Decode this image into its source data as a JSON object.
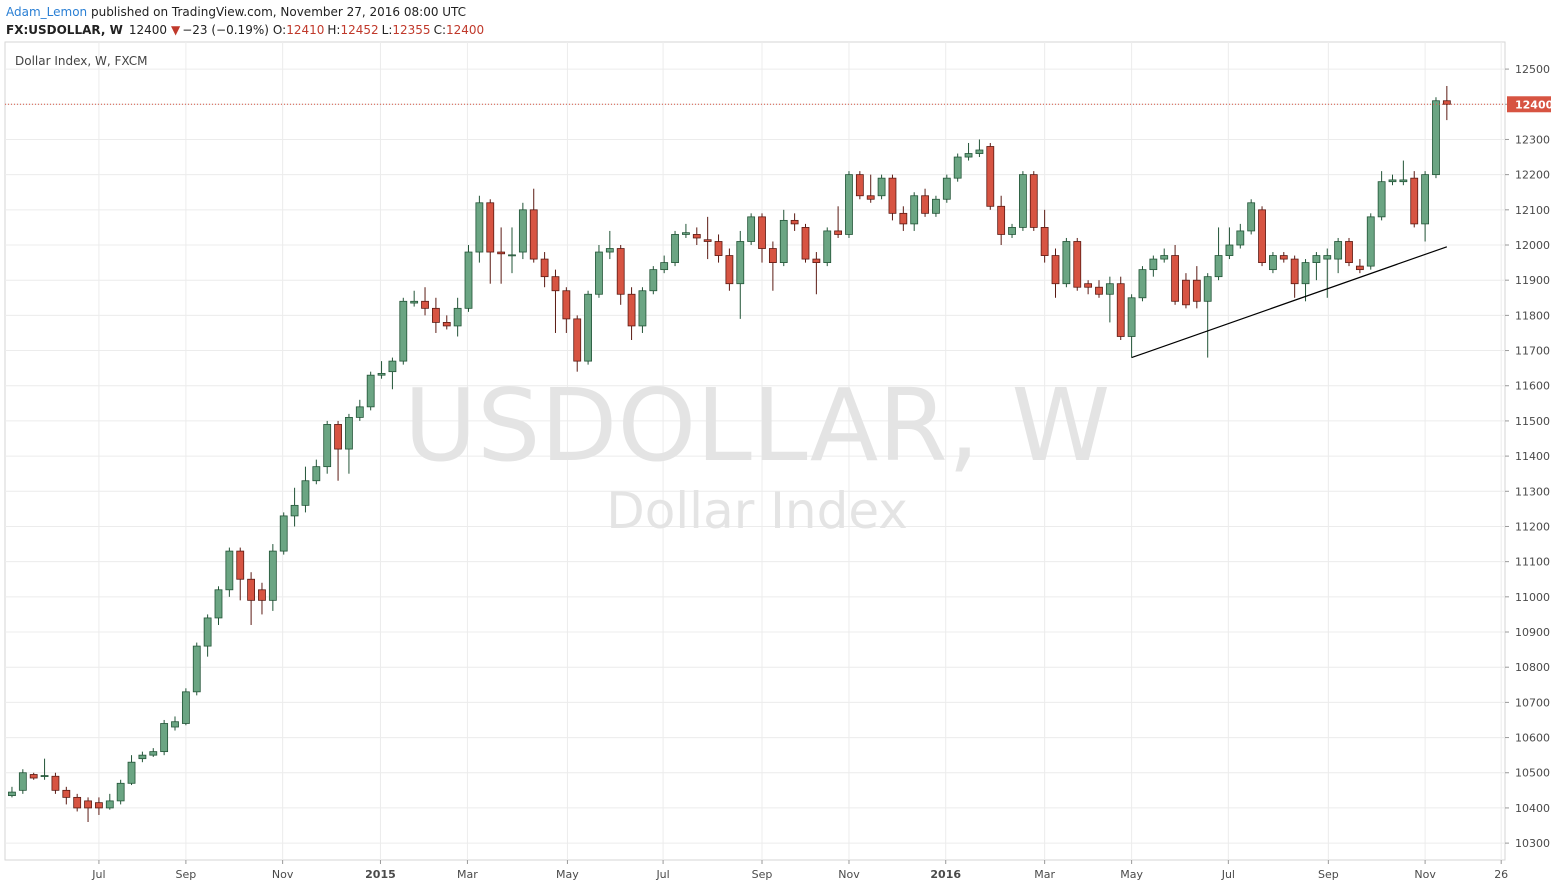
{
  "header": {
    "author": "Adam_Lemon",
    "published": " published on TradingView.com, November 27, 2016 08:00 UTC",
    "symbol": "FX:USDOLLAR, W",
    "price": "12400",
    "change_arrow": "▼",
    "change": "−23 (−0.19%)",
    "ohlc": [
      {
        "key": "O:",
        "value": "12410"
      },
      {
        "key": "H:",
        "value": "12452"
      },
      {
        "key": "L:",
        "value": "12355"
      },
      {
        "key": "C:",
        "value": "12400"
      }
    ]
  },
  "chart_data": {
    "type": "candlestick",
    "title": "Dollar Index, W, FXCM",
    "watermark": "USDOLLAR, W",
    "watermark_subtitle": "Dollar Index",
    "up_color": "#6ba583",
    "up_border": "#225437",
    "down_color": "#d75442",
    "down_border": "#5b1a13",
    "ylim": [
      10252,
      12577
    ],
    "yticks": [
      10300,
      10400,
      10500,
      10600,
      10700,
      10800,
      10900,
      11000,
      11100,
      11200,
      11300,
      11400,
      11500,
      11600,
      11700,
      11800,
      11900,
      12000,
      12100,
      12200,
      12300,
      12400,
      12500
    ],
    "xlim": [
      -0.64,
      137.35
    ],
    "xticks": [
      {
        "value": 8.0,
        "label": "Jul"
      },
      {
        "value": 16.0,
        "label": "Sep"
      },
      {
        "value": 24.9,
        "label": "Nov"
      },
      {
        "value": 33.9,
        "label": "2015"
      },
      {
        "value": 41.9,
        "label": "Mar"
      },
      {
        "value": 51.1,
        "label": "May"
      },
      {
        "value": 59.9,
        "label": "Jul"
      },
      {
        "value": 69.0,
        "label": "Sep"
      },
      {
        "value": 77.0,
        "label": "Nov"
      },
      {
        "value": 85.9,
        "label": "2016"
      },
      {
        "value": 95.0,
        "label": "Mar"
      },
      {
        "value": 103.0,
        "label": "May"
      },
      {
        "value": 111.9,
        "label": "Jul"
      },
      {
        "value": 121.1,
        "label": "Sep"
      },
      {
        "value": 130.0,
        "label": "Nov"
      },
      {
        "value": 137.0,
        "label": "26"
      }
    ],
    "grid": true,
    "last_price": 12400,
    "last_price_color": "#d75442",
    "trendline": {
      "x": [
        103,
        132
      ],
      "y": [
        11680,
        11995
      ]
    },
    "open": [
      10435,
      10450,
      10495,
      10490,
      10490,
      10450,
      10430,
      10420,
      10415,
      10400,
      10420,
      10470,
      10540,
      10550,
      10560,
      10630,
      10640,
      10730,
      10860,
      10940,
      11020,
      11130,
      11050,
      11020,
      10990,
      11130,
      11230,
      11260,
      11330,
      11370,
      11490,
      11420,
      11510,
      11540,
      11630,
      11640,
      11670,
      11835,
      11840,
      11820,
      11780,
      11770,
      11820,
      11980,
      12120,
      11980,
      11970,
      11980,
      12100,
      11960,
      11910,
      11870,
      11790,
      11670,
      11860,
      11980,
      11990,
      11860,
      11770,
      11870,
      11930,
      11950,
      12030,
      12030,
      12015,
      12010,
      11970,
      11890,
      12010,
      12080,
      11990,
      11950,
      12070,
      12050,
      11960,
      11950,
      12040,
      12030,
      12200,
      12140,
      12140,
      12190,
      12090,
      12060,
      12140,
      12090,
      12130,
      12190,
      12250,
      12260,
      12280,
      12110,
      12030,
      12050,
      12200,
      12050,
      11970,
      11890,
      12010,
      11890,
      11880,
      11860,
      11890,
      11740,
      11850,
      11930,
      11960,
      11970,
      11900,
      11900,
      11840,
      11910,
      11970,
      12000,
      12040,
      12100,
      11930,
      11970,
      11960,
      11890,
      11950,
      11960,
      11960,
      12010,
      11940,
      11940,
      12080,
      12180,
      12180,
      12190,
      12060,
      12200,
      12410
    ],
    "high": [
      10460,
      10510,
      10500,
      10540,
      10500,
      10460,
      10440,
      10430,
      10430,
      10440,
      10480,
      10550,
      10560,
      10570,
      10650,
      10660,
      10740,
      10870,
      10950,
      11030,
      11140,
      11140,
      11070,
      11040,
      11150,
      11240,
      11310,
      11370,
      11390,
      11500,
      11500,
      11520,
      11560,
      11640,
      11670,
      11680,
      11850,
      11870,
      11880,
      11850,
      11800,
      11850,
      12000,
      12140,
      12130,
      12050,
      12050,
      12120,
      12160,
      11980,
      11930,
      11880,
      11800,
      11870,
      12000,
      12040,
      12000,
      11880,
      11880,
      11940,
      11970,
      12040,
      12060,
      12050,
      12080,
      12030,
      11990,
      12040,
      12090,
      12090,
      12010,
      12100,
      12090,
      12060,
      11980,
      12050,
      12110,
      12210,
      12210,
      12200,
      12200,
      12200,
      12110,
      12150,
      12160,
      12140,
      12200,
      12260,
      12290,
      12300,
      12290,
      12140,
      12060,
      12210,
      12210,
      12100,
      11990,
      12020,
      12020,
      11900,
      11900,
      11910,
      11910,
      11860,
      11940,
      11970,
      11990,
      12000,
      11920,
      11940,
      11920,
      12050,
      12050,
      12060,
      12130,
      12110,
      11980,
      11980,
      11970,
      11960,
      11980,
      11990,
      12020,
      12020,
      11960,
      12090,
      12210,
      12200,
      12240,
      12210,
      12210,
      12420,
      12452
    ],
    "low": [
      10430,
      10440,
      10480,
      10480,
      10440,
      10410,
      10390,
      10360,
      10380,
      10395,
      10410,
      10465,
      10530,
      10545,
      10550,
      10620,
      10635,
      10720,
      10830,
      10920,
      11000,
      10990,
      10920,
      10950,
      10960,
      11120,
      11200,
      11240,
      11320,
      11350,
      11330,
      11350,
      11500,
      11530,
      11620,
      11590,
      11660,
      11825,
      11800,
      11750,
      11760,
      11740,
      11810,
      11950,
      11890,
      11890,
      11920,
      11960,
      11950,
      11880,
      11750,
      11750,
      11640,
      11660,
      11850,
      11960,
      11830,
      11730,
      11750,
      11860,
      11920,
      11940,
      12020,
      12000,
      11960,
      11950,
      11870,
      11790,
      12000,
      11950,
      11870,
      11940,
      12040,
      11950,
      11860,
      11940,
      12020,
      12020,
      12130,
      12120,
      12130,
      12070,
      12040,
      12040,
      12080,
      12080,
      12120,
      12180,
      12240,
      12250,
      12100,
      12000,
      12020,
      12040,
      12040,
      11950,
      11850,
      11880,
      11870,
      11860,
      11850,
      11780,
      11730,
      11680,
      11840,
      11910,
      11950,
      11830,
      11820,
      11820,
      11680,
      11900,
      11960,
      11990,
      12030,
      11940,
      11920,
      11950,
      11850,
      11840,
      11900,
      11850,
      11920,
      11940,
      11920,
      11930,
      12070,
      12170,
      12170,
      12050,
      12010,
      12190,
      12355
    ],
    "close": [
      10445,
      10500,
      10485,
      10492,
      10450,
      10430,
      10400,
      10400,
      10400,
      10420,
      10470,
      10530,
      10550,
      10560,
      10640,
      10645,
      10730,
      10860,
      10940,
      11020,
      11130,
      11050,
      10990,
      10990,
      11130,
      11230,
      11260,
      11330,
      11370,
      11490,
      11420,
      11510,
      11540,
      11630,
      11635,
      11670,
      11840,
      11840,
      11820,
      11780,
      11770,
      11820,
      11980,
      12120,
      11980,
      11975,
      11972,
      12100,
      11960,
      11910,
      11870,
      11790,
      11670,
      11860,
      11980,
      11990,
      11860,
      11770,
      11870,
      11930,
      11950,
      12030,
      12035,
      12020,
      12010,
      11970,
      11890,
      12010,
      12080,
      11990,
      11950,
      12070,
      12060,
      11960,
      11950,
      12040,
      12030,
      12200,
      12140,
      12130,
      12190,
      12090,
      12060,
      12140,
      12090,
      12130,
      12190,
      12250,
      12260,
      12270,
      12110,
      12030,
      12050,
      12200,
      12050,
      11970,
      11890,
      12010,
      11880,
      11880,
      11860,
      11890,
      11740,
      11850,
      11930,
      11960,
      11970,
      11840,
      11830,
      11840,
      11910,
      11970,
      12000,
      12040,
      12120,
      11950,
      11970,
      11960,
      11890,
      11950,
      11970,
      11970,
      12010,
      11950,
      11930,
      12080,
      12180,
      12185,
      12185,
      12060,
      12200,
      12410,
      12400
    ]
  }
}
